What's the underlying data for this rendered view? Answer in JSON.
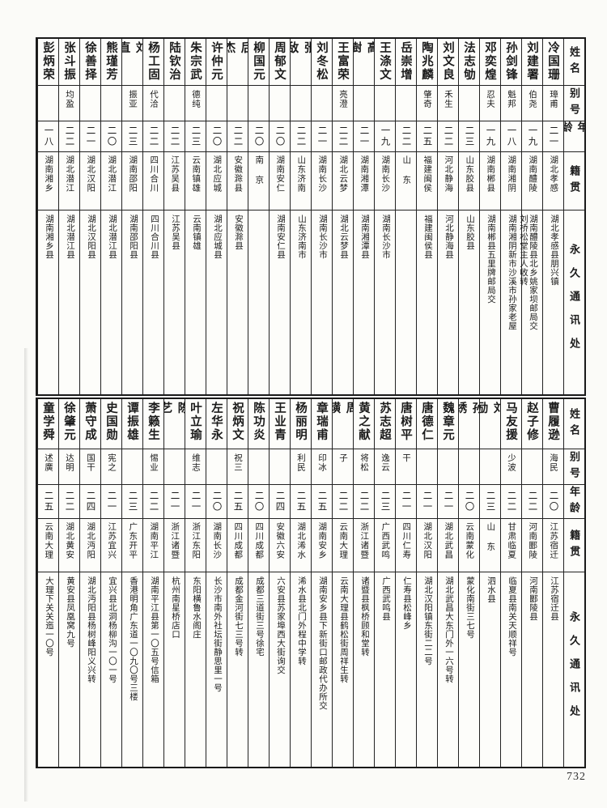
{
  "page": {
    "number": "732"
  },
  "header_labels": {
    "name": "姓名",
    "alias": "别号",
    "age": "年龄",
    "origin": "籍贯",
    "address": "永久通讯处"
  },
  "tables": [
    {
      "entries": [
        {
          "name": "冷国珊",
          "alias": "璋甫",
          "age": "二一",
          "origin": "湖北孝感",
          "address": "湖北孝感县朋兴镇"
        },
        {
          "name": "刘建署",
          "alias": "伯尧",
          "age": "一九",
          "origin": "湖南醴陵",
          "address": "湖南醴陵县北乡姚家坝邮局交\n刘桥松堂主人收转"
        },
        {
          "name": "孙剑锋",
          "alias": "魁邦",
          "age": "一八",
          "origin": "湖南湘阴",
          "address": "湖南湘阴新市沙溪市孙家老屋"
        },
        {
          "name": "邓奕煌",
          "alias": "忍夫",
          "age": "一九",
          "origin": "湖南郴县",
          "address": "湖南郴县五里牌邮局交"
        },
        {
          "name": "法志劬",
          "alias": "",
          "age": "二三",
          "origin": "山东胶县",
          "address": "山东胶县"
        },
        {
          "name": "刘文良",
          "alias": "禾生",
          "age": "二二",
          "origin": "河北静海",
          "address": "河北静海县"
        },
        {
          "name": "陶兆麟",
          "alias": "肇奇",
          "age": "二五",
          "origin": "福建闽侯",
          "address": "福建闽侯县"
        },
        {
          "name": "岳崇增",
          "alias": "",
          "age": "二二",
          "origin": "山东",
          "address": ""
        },
        {
          "name": "王涤文",
          "alias": "",
          "age": "一九",
          "origin": "湖南长沙",
          "address": "湖南长沙市"
        },
        {
          "name": "高澍",
          "alias": "",
          "age": "二一",
          "origin": "湖南湘潭",
          "address": "湖南湘潭县"
        },
        {
          "name": "王富荣",
          "alias": "亮澄",
          "age": "二二",
          "origin": "湖北云梦",
          "address": "湖北云梦县"
        },
        {
          "name": "刘冬松",
          "alias": "",
          "age": "二一",
          "origin": "湖南长沙",
          "address": "湖南长沙市"
        },
        {
          "name": "张敌",
          "alias": "",
          "age": "二二",
          "origin": "山东济南",
          "address": "山东济南市"
        },
        {
          "name": "周郁文",
          "alias": "",
          "age": "二〇",
          "origin": "湖南安仁",
          "address": "湖南安仁县"
        },
        {
          "name": "柳国元",
          "alias": "",
          "age": "二〇",
          "origin": "南京",
          "address": ""
        },
        {
          "name": "后杰",
          "alias": "",
          "age": "二二",
          "origin": "安徽滁县",
          "address": "安徽滁县"
        },
        {
          "name": "许仲元",
          "alias": "",
          "age": "二〇",
          "origin": "湖北应城",
          "address": "湖北应城县"
        },
        {
          "name": "朱宗武",
          "alias": "德纯",
          "age": "二三",
          "origin": "云南镇雄",
          "address": "云南镇雄"
        },
        {
          "name": "陆钦治",
          "alias": "",
          "age": "二二",
          "origin": "江苏吴县",
          "address": "江苏吴县"
        },
        {
          "name": "杨工固",
          "alias": "代洽",
          "age": "二二",
          "origin": "四川合川",
          "address": "四川合川县"
        },
        {
          "name": "刘直",
          "alias": "振亚",
          "age": "二三",
          "origin": "湖南邵阳",
          "address": "湖南邵阳县"
        },
        {
          "name": "熊瑾芳",
          "alias": "",
          "age": "二〇",
          "origin": "湖北潜江",
          "address": "湖北潜江县"
        },
        {
          "name": "徐善择",
          "alias": "",
          "age": "二一",
          "origin": "湖北汉阳",
          "address": "湖北汉阳县"
        },
        {
          "name": "张斗振",
          "alias": "均盈",
          "age": "二二",
          "origin": "湖北潜江",
          "address": "湖北潜江县"
        },
        {
          "name": "彭炳荣",
          "alias": "",
          "age": "一八",
          "origin": "湖南湘乡",
          "address": "湖南湘乡县"
        }
      ]
    },
    {
      "entries": [
        {
          "name": "曹履逊",
          "alias": "海民",
          "age": "二〇",
          "origin": "江苏宿迁",
          "address": "江苏宿迁县"
        },
        {
          "name": "赵子修",
          "alias": "",
          "age": "二二",
          "origin": "河南郾陵",
          "address": "河南郾陵县"
        },
        {
          "name": "马友援",
          "alias": "少波",
          "age": "二二",
          "origin": "甘肃临夏",
          "address": "临夏县南关天顺祥号"
        },
        {
          "name": "刘励",
          "alias": "",
          "age": "二三",
          "origin": "山东",
          "address": "泗水县"
        },
        {
          "name": "孙绣",
          "alias": "",
          "age": "二〇",
          "origin": "云南蒙化",
          "address": "蒙化南街三七号"
        },
        {
          "name": "魏章元",
          "alias": "",
          "age": "二一",
          "origin": "湖北武昌",
          "address": "湖北武昌大东门外一六号转"
        },
        {
          "name": "唐德仁",
          "alias": "",
          "age": "二一",
          "origin": "湖北汉阳",
          "address": "湖北汉阳镇东街二二号"
        },
        {
          "name": "唐树平",
          "alias": "干",
          "age": "二一",
          "origin": "四川仁寿",
          "address": "仁寿县松峰乡"
        },
        {
          "name": "苏志超",
          "alias": "逸云",
          "age": "二三",
          "origin": "广西武鸣",
          "address": "广西武鸣县"
        },
        {
          "name": "黄之献",
          "alias": "将松",
          "age": "二二",
          "origin": "浙江诸暨",
          "address": "诸暨县枫桥顾和堂转"
        },
        {
          "name": "周璜",
          "alias": "子",
          "age": "二二",
          "origin": "云南大理",
          "address": "云南大理县鹤松街周祥生转"
        },
        {
          "name": "章瑞甫",
          "alias": "印冰",
          "age": "二五",
          "origin": "湖南安乡",
          "address": "湖南安乡县下新街口邮政代办所交"
        },
        {
          "name": "杨丽明",
          "alias": "利民",
          "age": "二五",
          "origin": "湖北浠水",
          "address": "浠水县北门外程中学转"
        },
        {
          "name": "王业青",
          "alias": "",
          "age": "二四",
          "origin": "安徽六安",
          "address": "六安县苏家埠西大街询交"
        },
        {
          "name": "陈功炎",
          "alias": "",
          "age": "二〇",
          "origin": "四川成都",
          "address": "成都三道街三号徐宅"
        },
        {
          "name": "祝炳文",
          "alias": "祝三",
          "age": "二五",
          "origin": "四川成都",
          "address": "成都金河街七三号转"
        },
        {
          "name": "左华永",
          "alias": "",
          "age": "二〇",
          "origin": "湖南长沙",
          "address": "长沙市南外社坛街静思里一号"
        },
        {
          "name": "叶立瑜",
          "alias": "维志",
          "age": "二一",
          "origin": "浙江东阳",
          "address": "东阳横鲁水阁庄"
        },
        {
          "name": "陈艺",
          "alias": "",
          "age": "二一",
          "origin": "浙江诸暨",
          "address": "杭州南星桥店口"
        },
        {
          "name": "李籁生",
          "alias": "惕业",
          "age": "二二",
          "origin": "湖南平江",
          "address": "湖南平江县第一〇五号信箱"
        },
        {
          "name": "谭振雄",
          "alias": "",
          "age": "二三",
          "origin": "广东开平",
          "address": "香港明角广东道一〇九〇号三楼"
        },
        {
          "name": "史国勋",
          "alias": "宪之",
          "age": "二一",
          "origin": "江苏宜兴",
          "address": "宜兴县北洞杨柳沟一〇一号"
        },
        {
          "name": "萧守成",
          "alias": "国干",
          "age": "二四",
          "origin": "湖北沔阳",
          "address": "湖北沔阳县杨树峰阳义兴转"
        },
        {
          "name": "徐肇元",
          "alias": "达明",
          "age": "二二",
          "origin": "湖北黄安",
          "address": "黄安县凤凰窝九号"
        },
        {
          "name": "童学舜",
          "alias": "述廣",
          "age": "二五",
          "origin": "云南大理",
          "address": "大理下关关迤一〇号"
        }
      ]
    }
  ]
}
